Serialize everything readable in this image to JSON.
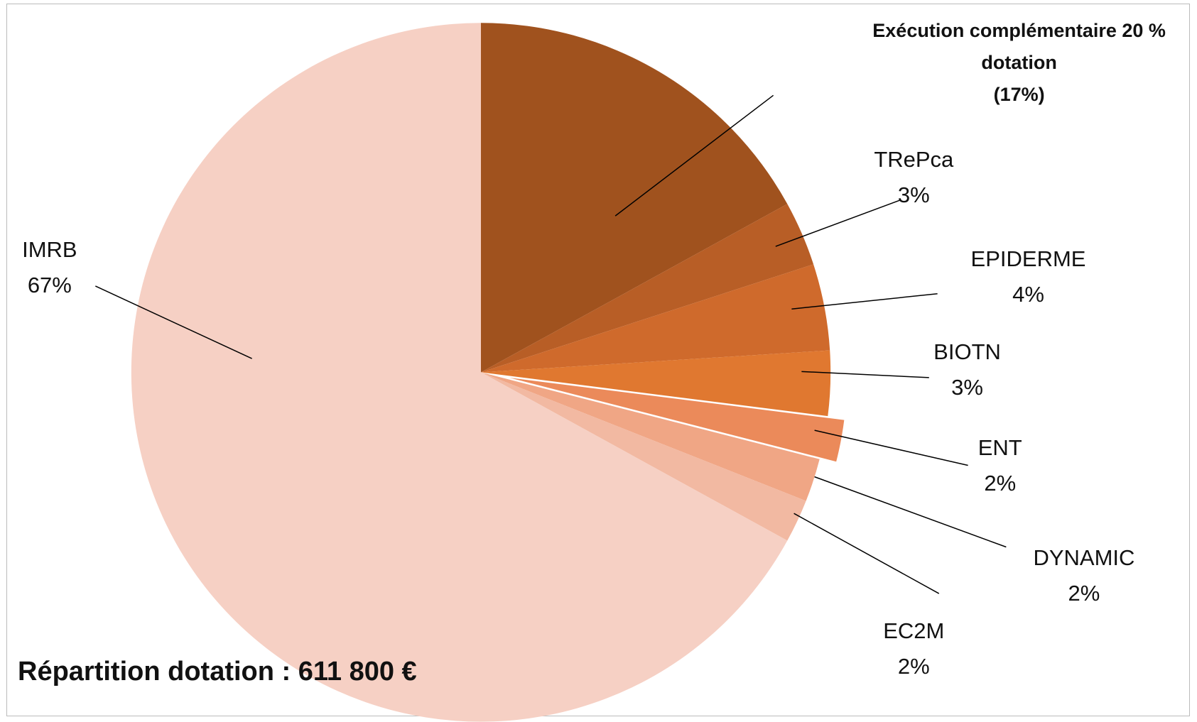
{
  "chart_data": {
    "type": "pie",
    "title": "Répartition dotation : 611 800 €",
    "categories": [
      "Exécution complémentaire 20 % dotation",
      "TRePca",
      "EPIDERME",
      "BIOTN",
      "ENT",
      "DYNAMIC",
      "EC2M",
      "IMRB"
    ],
    "values": [
      17,
      3,
      4,
      3,
      2,
      2,
      2,
      67
    ],
    "value_labels": [
      "(17%)",
      "3%",
      "4%",
      "3%",
      "2%",
      "2%",
      "2%",
      "67%"
    ],
    "colors": [
      "#a0521e",
      "#b85e26",
      "#cf6a2c",
      "#e07830",
      "#eb8a5a",
      "#f0a685",
      "#f2b9a2",
      "#f6d0c4"
    ],
    "explode": [
      0,
      0,
      0,
      0,
      0.05,
      0,
      0,
      0
    ]
  }
}
